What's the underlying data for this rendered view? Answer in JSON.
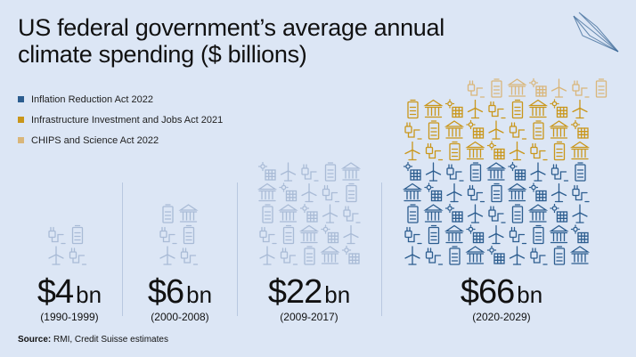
{
  "title": "US federal government’s average annual climate spending ($ billions)",
  "legend": [
    {
      "label": "Inflation Reduction Act 2022",
      "color": "#2c5d8f"
    },
    {
      "label": "Infrastructure Investment and Jobs Act 2021",
      "color": "#c9961a"
    },
    {
      "label": "CHIPS and Science Act 2022",
      "color": "#d9b67a"
    }
  ],
  "colors": {
    "past": "#a9bbd6",
    "ira": "#2c5d8f",
    "iija": "#c9961a",
    "chips": "#d9b67a"
  },
  "chart_data": {
    "type": "pictogram",
    "title": "US federal government’s average annual climate spending ($ billions)",
    "unit": "bn",
    "icons": [
      "wind-turbine",
      "ev-charger",
      "battery",
      "building",
      "solar-panel"
    ],
    "categories": [
      "(1990-1999)",
      "(2000-2008)",
      "(2009-2017)",
      "(2020-2029)"
    ],
    "values": [
      4,
      6,
      22,
      66
    ],
    "value_labels": [
      "$4",
      "$6",
      "$22",
      "$66"
    ],
    "breakdown_2020_2029": [
      {
        "name": "Inflation Reduction Act 2022",
        "rows": 5
      },
      {
        "name": "Infrastructure Investment and Jobs Act 2021",
        "rows": 3
      },
      {
        "name": "CHIPS and Science Act 2022",
        "rows": 1
      }
    ]
  },
  "source_label": "Source:",
  "source_text": "RMI, Credit Suisse estimates"
}
